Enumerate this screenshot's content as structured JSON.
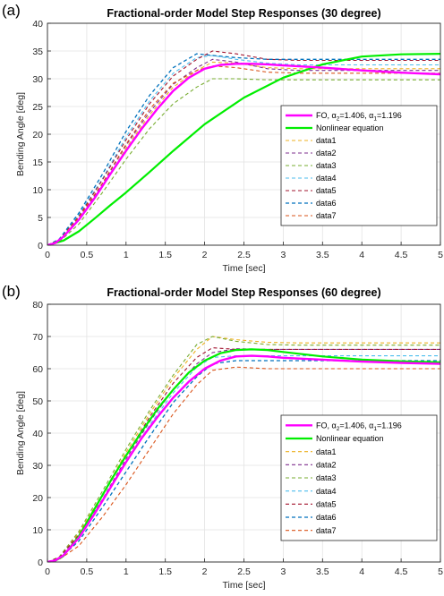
{
  "chart_data": [
    {
      "panel_label": "(a)",
      "type": "line",
      "title": "Fractional-order Model Step Responses (30 degree)",
      "xlabel": "Time [sec]",
      "ylabel": "Bending Angle [deg]",
      "xlim": [
        0,
        5
      ],
      "ylim": [
        0,
        40
      ],
      "xticks": [
        "0",
        "0.5",
        "1",
        "1.5",
        "2",
        "2.5",
        "3",
        "3.5",
        "4",
        "4.5",
        "5"
      ],
      "yticks": [
        "0",
        "5",
        "10",
        "15",
        "20",
        "25",
        "30",
        "35",
        "40"
      ],
      "grid": true,
      "legend_position": "lower-right",
      "legend": [
        {
          "text": "FO, α",
          "sub1": "2",
          "mid": "=1.406, α",
          "sub2": "1",
          "tail": "=1.196"
        },
        {
          "text": "Nonlinear equation"
        },
        {
          "text": "data1"
        },
        {
          "text": "data2"
        },
        {
          "text": "data3"
        },
        {
          "text": "data4"
        },
        {
          "text": "data5"
        },
        {
          "text": "data6"
        },
        {
          "text": "data7"
        }
      ],
      "series": [
        {
          "name": "FO, α2=1.406, α1=1.196",
          "color": "#ff00ff",
          "style": "solid",
          "width": 2.4,
          "x": [
            0,
            0.1,
            0.2,
            0.4,
            0.6,
            0.8,
            1.0,
            1.2,
            1.4,
            1.6,
            1.8,
            2.0,
            2.2,
            2.4,
            2.6,
            2.8,
            3.0,
            3.5,
            4.0,
            4.5,
            5.0
          ],
          "y": [
            0,
            0.4,
            1.5,
            4.6,
            8.5,
            12.8,
            17.0,
            21.0,
            24.6,
            27.8,
            30.2,
            31.8,
            32.5,
            32.7,
            32.7,
            32.6,
            32.4,
            32.0,
            31.5,
            31.1,
            30.8
          ]
        },
        {
          "name": "Nonlinear equation",
          "color": "#00ee00",
          "style": "solid",
          "width": 2.2,
          "x": [
            0,
            0.2,
            0.4,
            0.6,
            0.8,
            1.0,
            1.3,
            1.6,
            2.0,
            2.5,
            3.0,
            3.5,
            4.0,
            4.5,
            5.0
          ],
          "y": [
            0,
            0.8,
            2.5,
            4.8,
            7.2,
            9.5,
            13.2,
            17.0,
            21.8,
            26.6,
            30.2,
            32.6,
            34.0,
            34.4,
            34.5
          ]
        },
        {
          "name": "data1",
          "color": "#edb120",
          "style": "dashed",
          "width": 1.1,
          "x": [
            0,
            0.15,
            0.4,
            0.7,
            1.0,
            1.3,
            1.6,
            1.9,
            2.1,
            2.4,
            2.8,
            3.2,
            5.0
          ],
          "y": [
            0,
            0.8,
            4.5,
            10.5,
            17.5,
            23.5,
            28.5,
            31.5,
            33.0,
            32.8,
            32.0,
            31.8,
            31.8
          ]
        },
        {
          "name": "data2",
          "color": "#7e2f8e",
          "style": "dashed",
          "width": 1.1,
          "x": [
            0,
            0.15,
            0.4,
            0.7,
            1.0,
            1.3,
            1.6,
            1.9,
            2.1,
            2.4,
            2.8,
            3.2,
            5.0
          ],
          "y": [
            0,
            0.8,
            4.8,
            11.0,
            18.0,
            24.0,
            29.0,
            32.0,
            33.5,
            33.0,
            31.8,
            31.5,
            31.5
          ]
        },
        {
          "name": "data3",
          "color": "#77ac30",
          "style": "dashed",
          "width": 1.1,
          "x": [
            0,
            0.15,
            0.4,
            0.7,
            1.0,
            1.3,
            1.6,
            1.9,
            2.1,
            2.4,
            2.8,
            3.2,
            5.0
          ],
          "y": [
            0,
            0.6,
            3.8,
            9.5,
            15.5,
            21.0,
            25.5,
            28.5,
            30.0,
            30.0,
            29.8,
            29.8,
            29.8
          ]
        },
        {
          "name": "data4",
          "color": "#4dbeee",
          "style": "dashed",
          "width": 1.1,
          "x": [
            0,
            0.15,
            0.4,
            0.7,
            1.0,
            1.3,
            1.6,
            1.9,
            2.1,
            2.4,
            2.8,
            3.2,
            5.0
          ],
          "y": [
            0,
            1.0,
            5.5,
            12.0,
            19.5,
            26.0,
            31.0,
            33.8,
            34.2,
            33.5,
            32.8,
            32.5,
            32.5
          ]
        },
        {
          "name": "data5",
          "color": "#a2142f",
          "style": "dashed",
          "width": 1.1,
          "x": [
            0,
            0.15,
            0.4,
            0.7,
            1.0,
            1.3,
            1.6,
            1.9,
            2.1,
            2.4,
            2.8,
            3.2,
            5.0
          ],
          "y": [
            0,
            1.0,
            5.2,
            11.8,
            19.0,
            25.5,
            30.5,
            33.5,
            35.0,
            34.5,
            33.5,
            33.3,
            33.3
          ]
        },
        {
          "name": "data6",
          "color": "#0072bd",
          "style": "dashed",
          "width": 1.3,
          "x": [
            0,
            0.15,
            0.4,
            0.7,
            1.0,
            1.3,
            1.6,
            1.9,
            2.1,
            2.4,
            2.8,
            3.2,
            5.0
          ],
          "y": [
            0,
            1.1,
            5.8,
            12.8,
            20.5,
            27.0,
            32.0,
            34.5,
            34.2,
            33.8,
            33.5,
            33.5,
            33.5
          ]
        },
        {
          "name": "data7",
          "color": "#d95319",
          "style": "dashed",
          "width": 1.1,
          "x": [
            0,
            0.15,
            0.4,
            0.7,
            1.0,
            1.3,
            1.6,
            1.9,
            2.1,
            2.4,
            2.8,
            3.2,
            5.0
          ],
          "y": [
            0,
            0.9,
            5.0,
            11.2,
            18.2,
            24.5,
            29.2,
            31.5,
            32.3,
            32.0,
            31.2,
            31.0,
            31.0
          ]
        }
      ]
    },
    {
      "panel_label": "(b)",
      "type": "line",
      "title": "Fractional-order Model Step Responses (60 degree)",
      "xlabel": "Time [sec]",
      "ylabel": "Bending Angle [deg]",
      "xlim": [
        0,
        5
      ],
      "ylim": [
        0,
        80
      ],
      "xticks": [
        "0",
        "0.5",
        "1",
        "1.5",
        "2",
        "2.5",
        "3",
        "3.5",
        "4",
        "4.5",
        "5"
      ],
      "yticks": [
        "0",
        "10",
        "20",
        "30",
        "40",
        "50",
        "60",
        "70",
        "80"
      ],
      "grid": true,
      "legend_position": "lower-right",
      "legend": [
        {
          "text": "FO, α",
          "sub1": "2",
          "mid": "=1.406, α",
          "sub2": "1",
          "tail": "=1.196"
        },
        {
          "text": "Nonlinear equation"
        },
        {
          "text": "data1"
        },
        {
          "text": "data2"
        },
        {
          "text": "data3"
        },
        {
          "text": "data4"
        },
        {
          "text": "data5"
        },
        {
          "text": "data6"
        },
        {
          "text": "data7"
        }
      ],
      "series": [
        {
          "name": "FO, α2=1.406, α1=1.196",
          "color": "#ff00ff",
          "style": "solid",
          "width": 2.4,
          "x": [
            0,
            0.1,
            0.2,
            0.4,
            0.6,
            0.8,
            1.0,
            1.2,
            1.4,
            1.6,
            1.8,
            2.0,
            2.2,
            2.4,
            2.6,
            2.8,
            3.0,
            3.5,
            4.0,
            4.5,
            5.0
          ],
          "y": [
            0,
            0.5,
            2.0,
            7.5,
            15.0,
            23.0,
            31.0,
            38.5,
            45.0,
            51.0,
            56.0,
            60.0,
            62.5,
            63.8,
            64.0,
            63.8,
            63.4,
            62.8,
            62.2,
            61.8,
            61.5
          ]
        },
        {
          "name": "Nonlinear equation",
          "color": "#00ee00",
          "style": "solid",
          "width": 2.2,
          "x": [
            0,
            0.1,
            0.2,
            0.4,
            0.6,
            0.8,
            1.0,
            1.2,
            1.4,
            1.6,
            1.8,
            2.0,
            2.2,
            2.4,
            2.6,
            2.8,
            3.0,
            3.5,
            4.0,
            4.5,
            5.0
          ],
          "y": [
            0,
            0.4,
            1.8,
            8.0,
            16.5,
            25.0,
            33.0,
            40.5,
            47.5,
            53.5,
            58.8,
            62.5,
            64.8,
            65.8,
            66.0,
            65.8,
            65.2,
            63.8,
            62.8,
            62.3,
            62.0
          ]
        },
        {
          "name": "data1",
          "color": "#edb120",
          "style": "dashed",
          "width": 1.1,
          "x": [
            0,
            0.15,
            0.4,
            0.7,
            1.0,
            1.3,
            1.6,
            1.9,
            2.1,
            2.4,
            2.8,
            3.2,
            5.0
          ],
          "y": [
            0,
            1.5,
            9.0,
            21.0,
            34.0,
            46.0,
            57.0,
            66.0,
            70.0,
            69.0,
            68.2,
            68.0,
            68.0
          ]
        },
        {
          "name": "data2",
          "color": "#7e2f8e",
          "style": "dashed",
          "width": 1.1,
          "x": [
            0,
            0.15,
            0.4,
            0.7,
            1.0,
            1.3,
            1.6,
            1.9,
            2.1,
            2.4,
            2.8,
            3.2,
            5.0
          ],
          "y": [
            0,
            1.3,
            8.0,
            19.5,
            32.0,
            43.5,
            53.5,
            61.5,
            65.0,
            66.2,
            66.0,
            66.0,
            66.0
          ]
        },
        {
          "name": "data3",
          "color": "#77ac30",
          "style": "dashed",
          "width": 1.1,
          "x": [
            0,
            0.15,
            0.4,
            0.7,
            1.0,
            1.3,
            1.6,
            1.9,
            2.1,
            2.4,
            2.8,
            3.2,
            5.0
          ],
          "y": [
            0,
            1.6,
            9.5,
            22.0,
            35.0,
            47.0,
            58.0,
            67.5,
            70.0,
            68.5,
            67.5,
            67.3,
            67.3
          ]
        },
        {
          "name": "data4",
          "color": "#4dbeee",
          "style": "dashed",
          "width": 1.1,
          "x": [
            0,
            0.15,
            0.4,
            0.7,
            1.0,
            1.3,
            1.6,
            1.9,
            2.1,
            2.4,
            2.8,
            3.2,
            5.0
          ],
          "y": [
            0,
            1.2,
            7.8,
            19.0,
            31.0,
            42.5,
            52.5,
            60.5,
            63.5,
            64.0,
            64.0,
            64.0,
            64.0
          ]
        },
        {
          "name": "data5",
          "color": "#a2142f",
          "style": "dashed",
          "width": 1.1,
          "x": [
            0,
            0.15,
            0.4,
            0.7,
            1.0,
            1.3,
            1.6,
            1.9,
            2.1,
            2.4,
            2.8,
            3.2,
            5.0
          ],
          "y": [
            0,
            1.4,
            8.5,
            20.5,
            33.0,
            45.0,
            55.5,
            63.5,
            66.5,
            66.0,
            66.0,
            66.0,
            66.0
          ]
        },
        {
          "name": "data6",
          "color": "#0072bd",
          "style": "dashed",
          "width": 1.3,
          "x": [
            0,
            0.15,
            0.4,
            0.7,
            1.0,
            1.3,
            1.6,
            1.9,
            2.1,
            2.4,
            2.8,
            3.2,
            5.0
          ],
          "y": [
            0,
            1.0,
            6.5,
            17.0,
            28.0,
            39.0,
            49.5,
            57.5,
            61.5,
            62.5,
            62.5,
            62.5,
            62.5
          ]
        },
        {
          "name": "data7",
          "color": "#d95319",
          "style": "dashed",
          "width": 1.1,
          "x": [
            0,
            0.15,
            0.4,
            0.7,
            1.0,
            1.3,
            1.6,
            1.9,
            2.1,
            2.4,
            2.8,
            3.2,
            5.0
          ],
          "y": [
            0,
            0.8,
            5.0,
            14.0,
            24.0,
            35.0,
            46.0,
            55.0,
            59.5,
            60.5,
            60.0,
            60.0,
            60.0
          ]
        }
      ]
    }
  ]
}
